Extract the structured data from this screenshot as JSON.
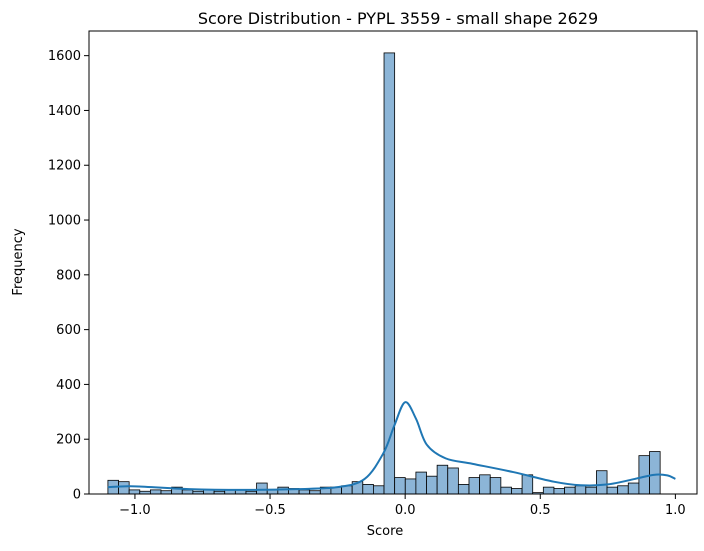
{
  "chart_data": {
    "type": "histogram",
    "title": "Score Distribution - PYPL 3559 - small shape 2629",
    "xlabel": "Score",
    "ylabel": "Frequency",
    "xlim": [
      -1.17,
      1.08
    ],
    "ylim": [
      0,
      1690
    ],
    "xticks": [
      -1.0,
      -0.5,
      0.0,
      0.5,
      1.0
    ],
    "xtick_labels": [
      "−1.0",
      "−0.5",
      "0.0",
      "0.5",
      "1.0"
    ],
    "yticks": [
      0,
      200,
      400,
      600,
      800,
      1000,
      1200,
      1400,
      1600
    ],
    "ytick_labels": [
      "0",
      "200",
      "400",
      "600",
      "800",
      "1000",
      "1200",
      "1400",
      "1600"
    ],
    "grid": false,
    "bin_start": -1.1,
    "bin_width": 0.0393,
    "counts": [
      50,
      45,
      15,
      10,
      15,
      12,
      25,
      15,
      10,
      15,
      10,
      15,
      15,
      10,
      40,
      15,
      25,
      20,
      15,
      12,
      25,
      25,
      30,
      45,
      35,
      30,
      1610,
      60,
      55,
      80,
      65,
      105,
      95,
      35,
      60,
      70,
      60,
      25,
      20,
      70,
      5,
      25,
      20,
      25,
      30,
      25,
      85,
      25,
      30,
      40,
      140,
      155
    ],
    "kde": {
      "x": [
        -1.1,
        -1.0,
        -0.8,
        -0.6,
        -0.4,
        -0.25,
        -0.15,
        -0.08,
        -0.04,
        0.0,
        0.04,
        0.08,
        0.15,
        0.25,
        0.4,
        0.55,
        0.65,
        0.75,
        0.85,
        0.92,
        0.97,
        1.0
      ],
      "y": [
        25,
        28,
        18,
        15,
        18,
        25,
        55,
        150,
        250,
        335,
        275,
        180,
        130,
        110,
        80,
        45,
        32,
        35,
        55,
        70,
        68,
        55
      ]
    },
    "colors": {
      "bar_fill": "#8cb5d7",
      "bar_edge": "#000000",
      "kde_line": "#1f77b4"
    }
  }
}
